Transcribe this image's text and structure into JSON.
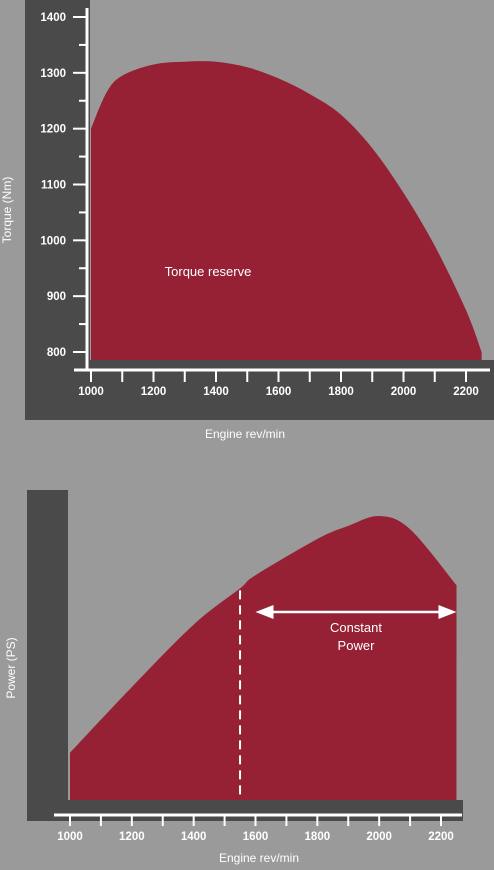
{
  "chart_data": [
    {
      "type": "area",
      "title": "",
      "xlabel": "Engine rev/min",
      "ylabel": "Torque (Nm)",
      "xlim": [
        1000,
        2200
      ],
      "ylim": [
        800,
        1400
      ],
      "x_ticks": [
        1000,
        1200,
        1400,
        1600,
        1800,
        2000,
        2200
      ],
      "y_ticks": [
        800,
        900,
        1000,
        1100,
        1200,
        1300,
        1400
      ],
      "series": [
        {
          "x": [
            1000,
            1050,
            1100,
            1200,
            1300,
            1400,
            1500,
            1600,
            1700,
            1800,
            1900,
            2000,
            2100,
            2200,
            2250
          ],
          "y": [
            1200,
            1265,
            1295,
            1315,
            1320,
            1320,
            1310,
            1290,
            1262,
            1225,
            1165,
            1085,
            990,
            875,
            800
          ]
        }
      ],
      "annotations": [
        "Torque reserve"
      ],
      "fill_color": "#962034",
      "grid": false
    },
    {
      "type": "area",
      "title": "",
      "xlabel": "Engine rev/min",
      "ylabel": "Power (PS)",
      "xlim": [
        1000,
        2200
      ],
      "x_ticks": [
        1000,
        1200,
        1400,
        1600,
        1800,
        2000,
        2200
      ],
      "series": [
        {
          "x": [
            1000,
            1200,
            1400,
            1550,
            1600,
            1800,
            1900,
            2000,
            2100,
            2250
          ],
          "y": [
            0.28,
            0.48,
            0.67,
            0.78,
            0.82,
            0.93,
            0.97,
            1.0,
            0.96,
            0.79
          ]
        }
      ],
      "marker_x": 1550,
      "range_arrow": [
        1600,
        2250
      ],
      "annotations": [
        "Constant",
        "Power"
      ],
      "fill_color": "#962034",
      "grid": false
    }
  ]
}
